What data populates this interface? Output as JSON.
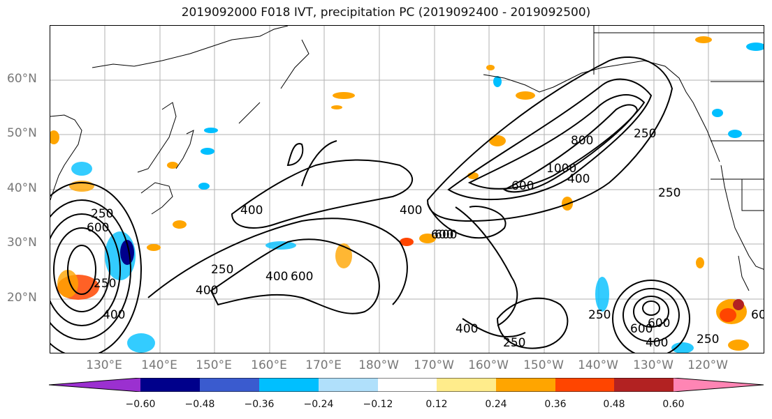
{
  "title": "2019092000 F018 IVT, precipitation PC (2019092400 - 2019092500)",
  "lat_labels": [
    "60°N",
    "50°N",
    "40°N",
    "30°N",
    "20°N"
  ],
  "lon_labels": [
    "130°E",
    "140°E",
    "150°E",
    "160°E",
    "170°E",
    "180°W",
    "170°W",
    "160°W",
    "150°W",
    "140°W",
    "130°W",
    "120°W"
  ],
  "colorbar": {
    "colors": [
      "#9b30d0",
      "#00008b",
      "#3a5bcf",
      "#00bfff",
      "#b0e0fb",
      "#ffffff",
      "#ffec8b",
      "#ffa500",
      "#ff4500",
      "#b22222",
      "#ff85b4"
    ],
    "tick_labels": [
      "−0.60",
      "−0.48",
      "−0.36",
      "−0.24",
      "−0.12",
      "0.12",
      "0.24",
      "0.36",
      "0.48",
      "0.60"
    ]
  },
  "contour_labels": [
    "250",
    "600",
    "400",
    "250",
    "400",
    "600",
    "400",
    "600",
    "1000",
    "800",
    "400",
    "600",
    "250",
    "250",
    "600",
    "400",
    "250",
    "400",
    "250",
    "400",
    "600",
    "250",
    "250",
    "600",
    "400",
    "600"
  ],
  "contour_values": [
    250,
    400,
    600,
    800,
    1000
  ]
}
